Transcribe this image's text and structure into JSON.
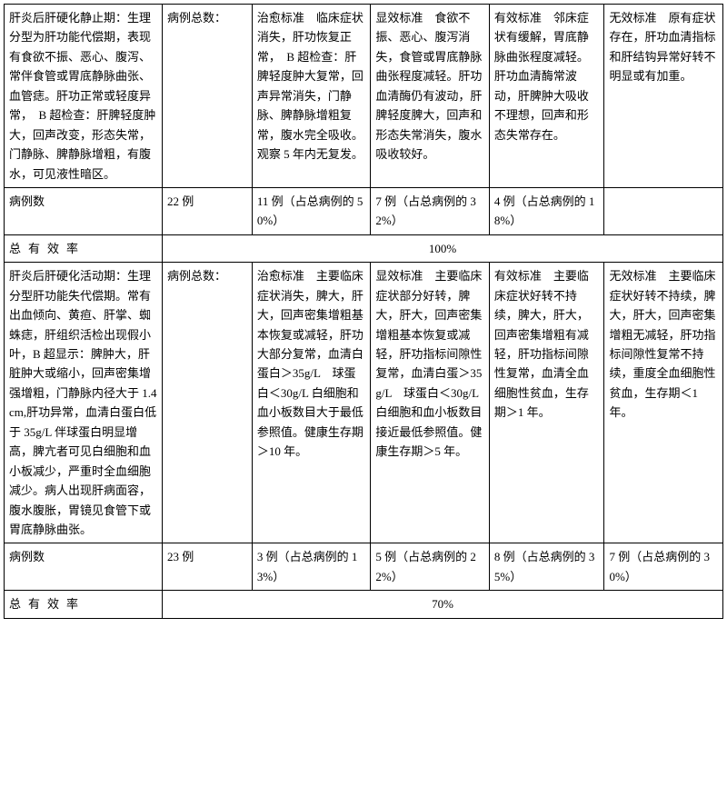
{
  "section1": {
    "desc": "肝炎后肝硬化静止期：生理分型为肝功能代偿期，表现有食欲不振、恶心、腹泻、常伴食管或胃底静脉曲张、血管痣。肝功正常或轻度异常，　B 超检查：肝脾轻度肿大，回声改变，形态失常，门静脉、脾静脉增粗，有腹水，可见液性暗区。",
    "totalLabel": "病例总数：",
    "cure": "治愈标准　临床症状消失，肝功恢复正常，　B 超检查：肝脾轻度肿大复常，回声异常消失，门静脉、脾静脉增粗复常，腹水完全吸收。观察 5 年内无复发。",
    "marked": "显效标准　食欲不振、恶心、腹泻消失，食管或胃底静脉曲张程度减轻。肝功血清酶仍有波动，肝脾轻度脾大，回声和形态失常消失，腹水吸收较好。",
    "effective": "有效标准　邻床症状有缓解，胃底静脉曲张程度减轻。肝功血清酶常波动，肝脾肿大吸收不理想，回声和形态失常存在。",
    "invalid": "无效标准　原有症状存在，肝功血清指标和肝结钩异常好转不明显或有加重。",
    "caseLabel": "病例数",
    "caseTotal": "22 例",
    "caseCure": "11 例（占总病例的 50%）",
    "caseMarked": "7 例（占总病例的 32%）",
    "caseEffective": "4 例（占总病例的 18%）",
    "caseInvalid": "",
    "rateLabel": "总有效率",
    "rateValue": "100%"
  },
  "section2": {
    "desc": "肝炎后肝硬化活动期：生理分型肝功能失代偿期。常有出血倾向、黄疸、肝掌、蜘蛛痣，肝组织活检出现假小叶，B 超显示：脾肿大，肝脏肿大或缩小，回声密集增强增粗，门静脉内径大于 1.4cm,肝功异常，血清白蛋白低于 35g/L 伴球蛋白明显增高，脾亢者可见白细胞和血小板减少，严重时全血细胞减少。病人出现肝病面容，腹水腹胀，胃镜见食管下或胃底静脉曲张。",
    "totalLabel": "病例总数：",
    "cure": "治愈标准　主要临床症状消失，脾大，肝大，回声密集增粗基本恢复或减轻，肝功大部分复常，血清白蛋白＞35g/L　球蛋白＜30g/L 白细胞和血小板数目大于最低参照值。健康生存期＞10 年。",
    "marked": "显效标准　主要临床症状部分好转，脾大，肝大，回声密集增粗基本恢复或减轻，肝功指标间隙性复常，血清白蛋＞35g/L　球蛋白＜30g/L 白细胞和血小板数目接近最低参照值。健康生存期＞5 年。",
    "effective": "有效标准　主要临床症状好转不持续，脾大，肝大，回声密集增粗有减轻，肝功指标间隙性复常，血清全血细胞性贫血，生存期＞1 年。",
    "invalid": "无效标准　主要临床症状好转不持续，脾大，肝大，回声密集增粗无减轻，肝功指标间隙性复常不持续，重度全血细胞性贫血，生存期＜1 年。",
    "caseLabel": "病例数",
    "caseTotal": "23 例",
    "caseCure": "3 例（占总病例的 13%）",
    "caseMarked": "5 例（占总病例的 22%）",
    "caseEffective": "8 例（占总病例的 35%）",
    "caseInvalid": "7 例（占总病例的 30%）",
    "rateLabel": "总有效率",
    "rateValue": "70%"
  }
}
